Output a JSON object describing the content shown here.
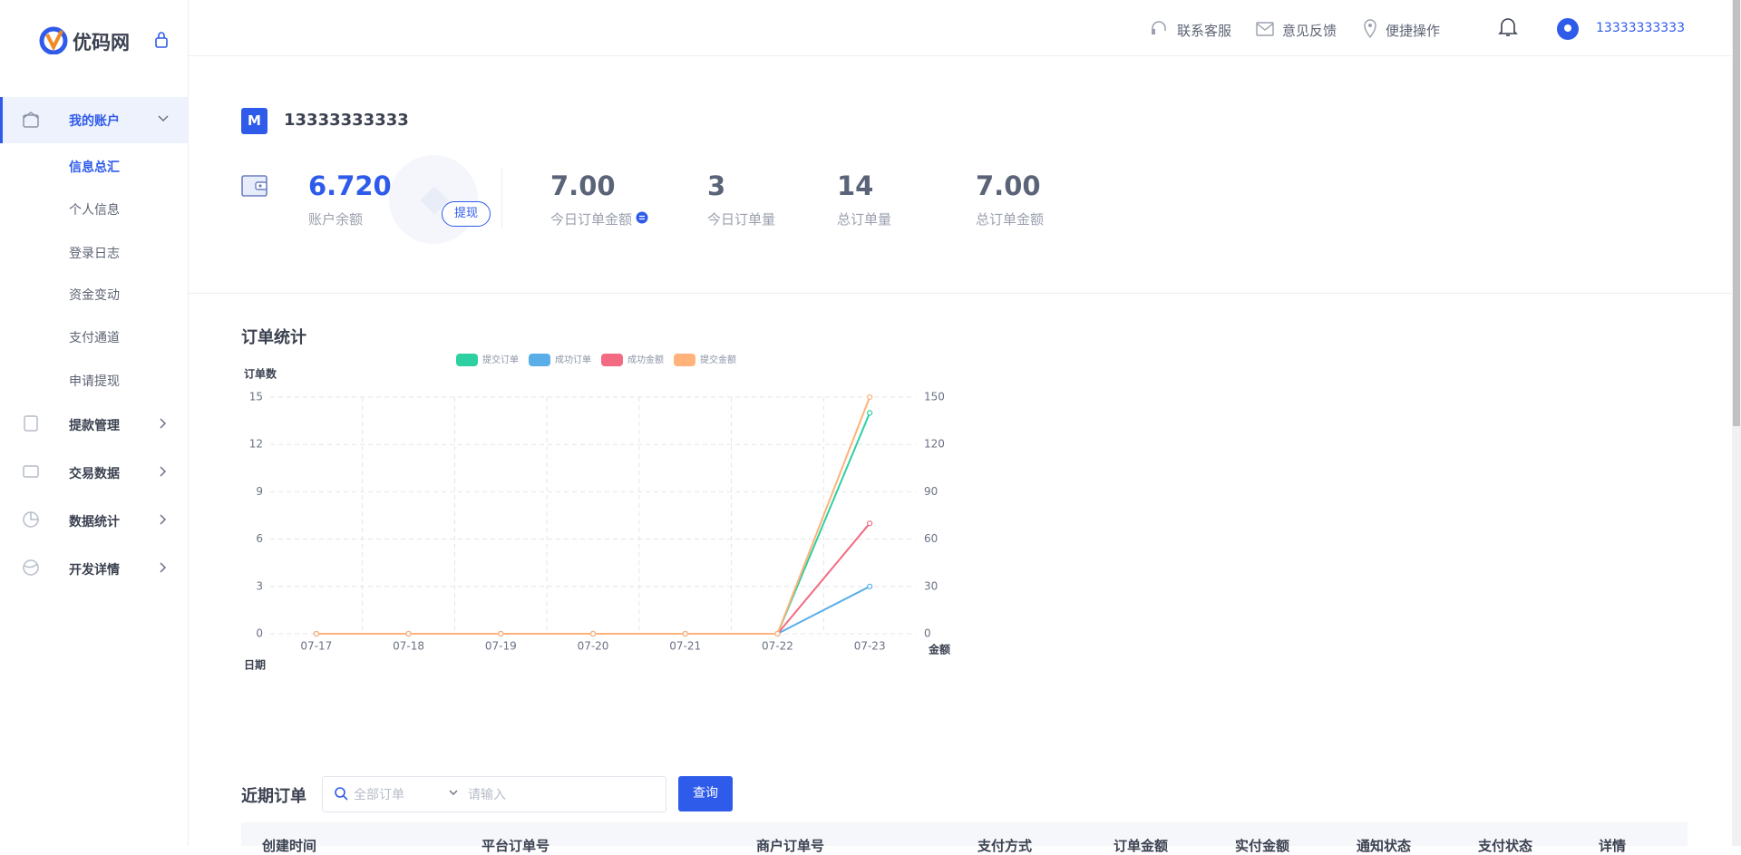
{
  "sidebar": {
    "brand": "优码网",
    "menu": [
      {
        "label": "我的账户",
        "children": [
          "信息总汇",
          "个人信息",
          "登录日志",
          "资金变动",
          "支付通道",
          "申请提现"
        ]
      },
      {
        "label": "提款管理"
      },
      {
        "label": "交易数据"
      },
      {
        "label": "数据统计"
      },
      {
        "label": "开发详情"
      }
    ]
  },
  "header": {
    "links": [
      "联系客服",
      "意见反馈",
      "便捷操作"
    ],
    "user": "13333333333"
  },
  "account": {
    "avatar": "M",
    "name": "13333333333",
    "balance": {
      "value": "6.720",
      "label": "账户余额"
    },
    "withdraw": "提现",
    "stats": [
      {
        "value": "7.00",
        "label": "今日订单金额"
      },
      {
        "value": "3",
        "label": "今日订单量"
      },
      {
        "value": "14",
        "label": "总订单量"
      },
      {
        "value": "7.00",
        "label": "总订单金额"
      }
    ]
  },
  "chart_data": {
    "type": "line",
    "title": "订单统计",
    "y_label": "订单数",
    "x_label": "日期",
    "y2_label": "金额",
    "categories": [
      "07-17",
      "07-18",
      "07-19",
      "07-20",
      "07-21",
      "07-22",
      "07-23"
    ],
    "series": [
      {
        "name": "提交订单",
        "color": "#2ecfa1",
        "values": [
          0,
          0,
          0,
          0,
          0,
          0,
          14
        ]
      },
      {
        "name": "成功订单",
        "color": "#5aaee8",
        "values": [
          0,
          0,
          0,
          0,
          0,
          0,
          3
        ]
      },
      {
        "name": "成功金额",
        "color": "#f26b82",
        "values": [
          0,
          0,
          0,
          0,
          0,
          0,
          7
        ]
      },
      {
        "name": "提交金额",
        "color": "#ffb27a",
        "values": [
          0,
          0,
          0,
          0,
          0,
          0,
          15
        ]
      }
    ],
    "ylim": [
      0,
      15
    ],
    "yticks": [
      0,
      3,
      6,
      9,
      12,
      15
    ],
    "y2lim": [
      0,
      150
    ],
    "y2ticks": [
      0,
      30,
      60,
      90,
      120,
      150
    ],
    "grid": true
  },
  "orders": {
    "title": "近期订单",
    "filter": "全部订单",
    "placeholder": "请输入",
    "button": "查询",
    "columns": [
      "创建时间",
      "平台订单号",
      "商户订单号",
      "支付方式",
      "订单金额",
      "实付金额",
      "通知状态",
      "支付状态",
      "详情"
    ]
  }
}
